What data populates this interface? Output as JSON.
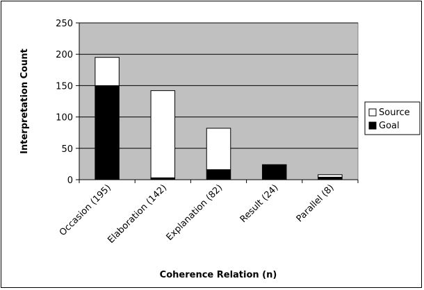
{
  "chart_data": {
    "type": "bar",
    "stacked": true,
    "categories": [
      "Occasion (195)",
      "Elaboration (142)",
      "Explanation (82)",
      "Result (24)",
      "Parallel (8)"
    ],
    "series": [
      {
        "name": "Goal",
        "values": [
          150,
          3,
          16,
          23,
          4
        ],
        "color": "#000000"
      },
      {
        "name": "Source",
        "values": [
          45,
          139,
          66,
          1,
          4
        ],
        "color": "#ffffff"
      }
    ],
    "xlabel": "Coherence Relation (n)",
    "ylabel": "Interpretation Count",
    "ylim": [
      0,
      250
    ],
    "yticks": [
      0,
      50,
      100,
      150,
      200,
      250
    ],
    "grid": true,
    "plot_background": "#c0c0c0",
    "legend_position": "right",
    "legend_order": [
      "Source",
      "Goal"
    ]
  }
}
